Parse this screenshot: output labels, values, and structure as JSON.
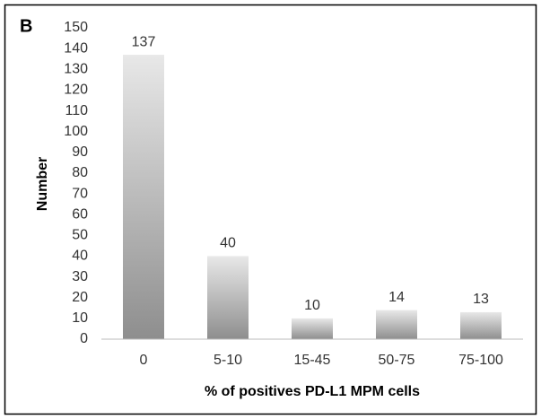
{
  "chart_data": {
    "type": "bar",
    "panel_label": "B",
    "y_label": "Number",
    "x_label": "% of positives PD-L1 MPM cells",
    "categories": [
      "0",
      "5-10",
      "15-45",
      "50-75",
      "75-100"
    ],
    "values": [
      137,
      40,
      10,
      14,
      13
    ],
    "gradient": [
      "#e8e8e8",
      "#8e8e8e"
    ],
    "ylim": [
      0,
      150
    ],
    "yticks": [
      0,
      10,
      20,
      30,
      40,
      50,
      60,
      70,
      80,
      90,
      100,
      110,
      120,
      130,
      140,
      150
    ],
    "grid": false
  }
}
